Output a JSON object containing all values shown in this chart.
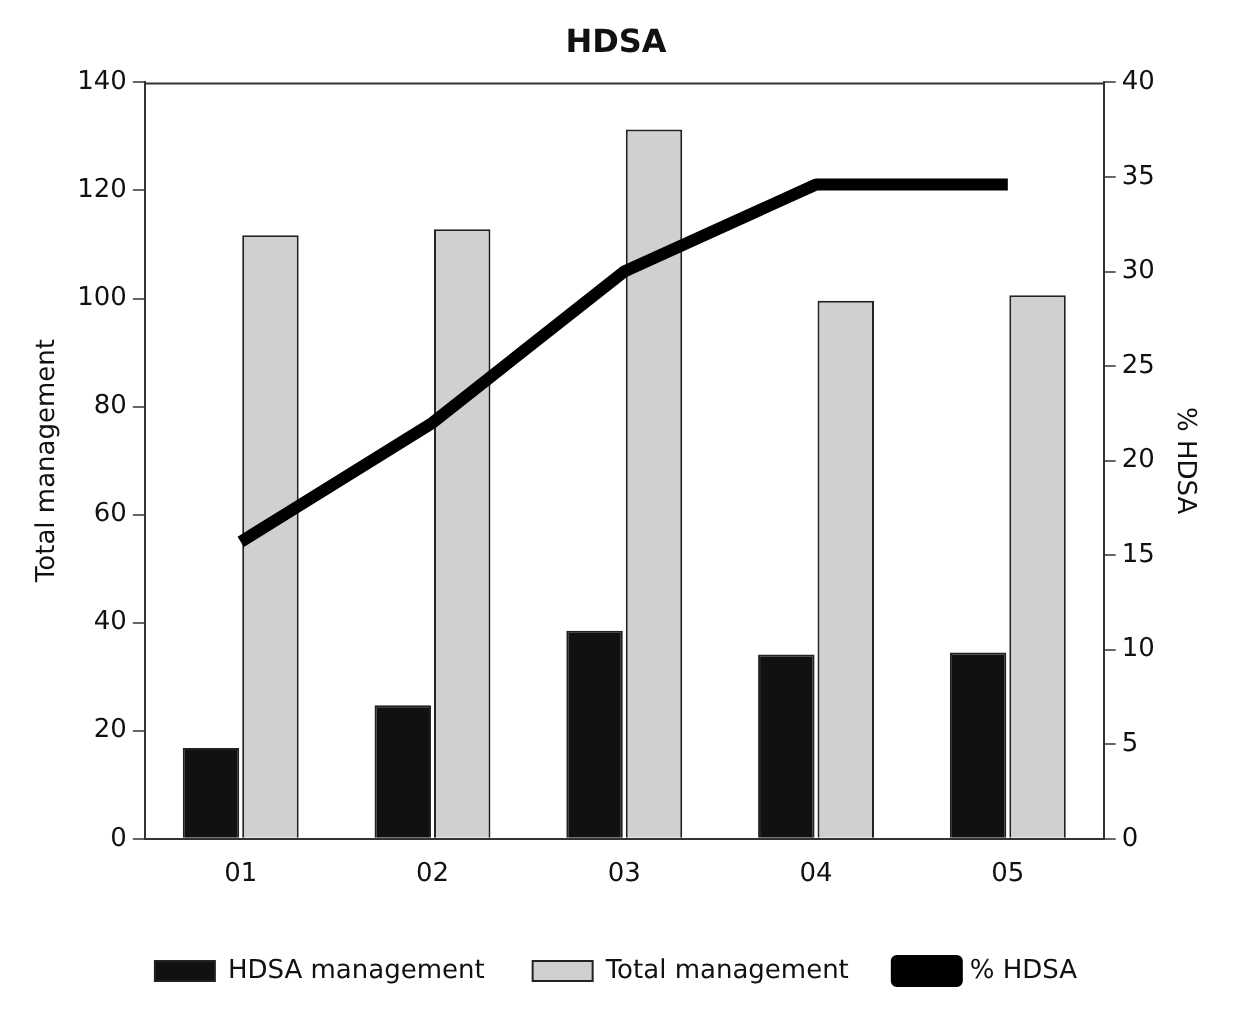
{
  "chart_data": {
    "type": "bar",
    "title": "HDSA",
    "ylabel": "Total management",
    "y2label": "% HDSA",
    "categories": [
      "01",
      "02",
      "03",
      "04",
      "05"
    ],
    "series": [
      {
        "name": "HDSA management",
        "color": "#111111",
        "values": [
          16.8,
          24.7,
          38.5,
          34.1,
          34.5
        ]
      },
      {
        "name": "Total management",
        "color": "#d0d0d0",
        "values": [
          111.7,
          112.8,
          131.3,
          99.6,
          100.6
        ]
      },
      {
        "name": "% HDSA",
        "type": "line",
        "axis": "y2",
        "color": "#000000",
        "values": [
          15.7,
          22.0,
          30.0,
          34.6,
          34.6
        ]
      }
    ],
    "ylim": [
      0,
      140
    ],
    "yticks": [
      0,
      20,
      40,
      60,
      80,
      100,
      120,
      140
    ],
    "y2lim": [
      0,
      40
    ],
    "y2ticks": [
      0,
      5,
      10,
      15,
      20,
      25,
      30,
      35,
      40
    ],
    "grid": false,
    "legend": "bottom",
    "marker": "none"
  }
}
